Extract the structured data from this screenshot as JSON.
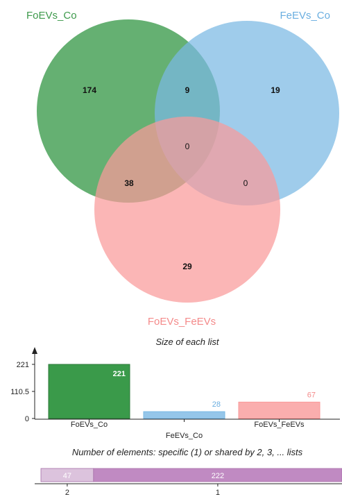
{
  "venn": {
    "sets": [
      {
        "name": "FoEVs_Co",
        "color": "#3a9a4a",
        "label_color": "#3e9a4c"
      },
      {
        "name": "FeEVs_Co",
        "color": "#7ab8e3",
        "label_color": "#6aaee0"
      },
      {
        "name": "FoEVs_FeEVs",
        "color": "#f99a9a",
        "label_color": "#f48a8a"
      }
    ],
    "regions": {
      "a_only": "174",
      "b_only": "19",
      "c_only": "29",
      "ab": "9",
      "ac": "38",
      "bc": "0",
      "abc": "0"
    }
  },
  "size_chart": {
    "caption": "Size of each list",
    "y_ticks": [
      "221",
      "110.5",
      "0"
    ]
  },
  "share_chart": {
    "caption": "Number of elements: specific (1) or shared by 2, 3, ... lists"
  },
  "chart_data": [
    {
      "type": "bar",
      "title": "Size of each list",
      "categories": [
        "FoEVs_Co",
        "FeEVs_Co",
        "FoEVs_FeEVs"
      ],
      "values": [
        221,
        28,
        67
      ],
      "value_labels": [
        "221",
        "28",
        "67"
      ],
      "ylim": [
        0,
        221
      ],
      "colors": [
        "#3a9a4a",
        "#7ab8e3",
        "#f99a9a"
      ],
      "value_label_colors": [
        "#ffffff",
        "#6aaee0",
        "#f48a8a"
      ]
    },
    {
      "type": "bar",
      "orientation": "horizontal-stacked",
      "title": "Number of elements: specific (1) or shared by 2, 3, ... lists",
      "categories": [
        "2",
        "1"
      ],
      "values": [
        47,
        222
      ],
      "value_labels": [
        "47",
        "222"
      ],
      "colors": [
        "#dcc3dd",
        "#c08ac2"
      ]
    }
  ]
}
